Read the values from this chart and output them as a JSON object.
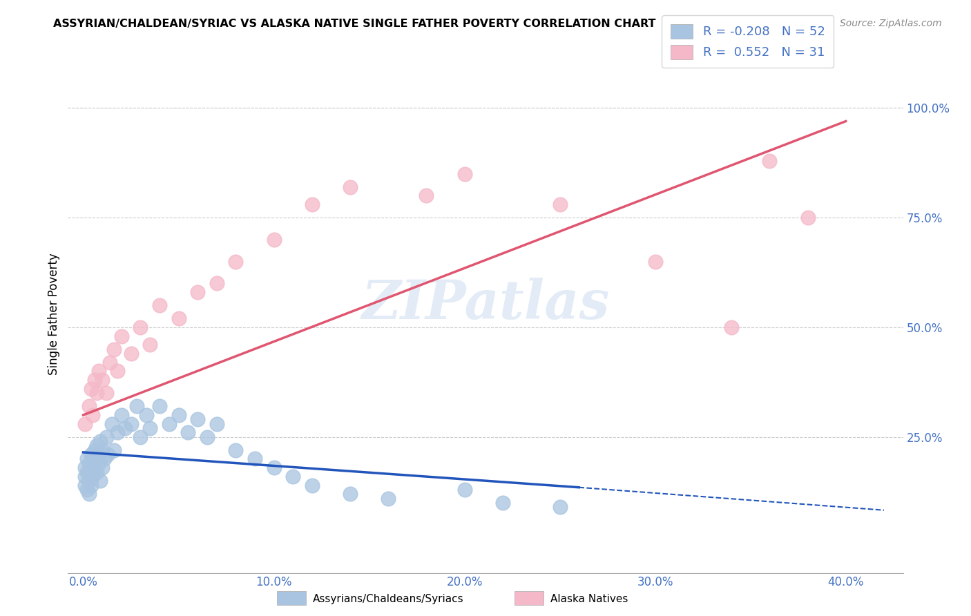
{
  "title": "ASSYRIAN/CHALDEAN/SYRIAC VS ALASKA NATIVE SINGLE FATHER POVERTY CORRELATION CHART",
  "source": "Source: ZipAtlas.com",
  "ylabel": "Single Father Poverty",
  "x_tick_labels": [
    "0.0%",
    "10.0%",
    "20.0%",
    "30.0%",
    "40.0%"
  ],
  "x_tick_vals": [
    0.0,
    0.1,
    0.2,
    0.3,
    0.4
  ],
  "y_tick_labels": [
    "25.0%",
    "50.0%",
    "75.0%",
    "100.0%"
  ],
  "y_tick_vals": [
    0.25,
    0.5,
    0.75,
    1.0
  ],
  "xlim": [
    -0.008,
    0.43
  ],
  "ylim": [
    -0.06,
    1.12
  ],
  "legend_label_blue": "Assyrians/Chaldeans/Syriacs",
  "legend_label_pink": "Alaska Natives",
  "R_blue": -0.208,
  "N_blue": 52,
  "R_pink": 0.552,
  "N_pink": 31,
  "blue_color": "#a8c4e0",
  "pink_color": "#f4b8c8",
  "blue_line_color": "#2255bb",
  "pink_line_color": "#e05570",
  "text_color": "#4472c4",
  "watermark": "ZIPatlas",
  "blue_scatter_x": [
    0.001,
    0.001,
    0.001,
    0.002,
    0.002,
    0.002,
    0.003,
    0.003,
    0.003,
    0.004,
    0.004,
    0.005,
    0.005,
    0.006,
    0.006,
    0.007,
    0.007,
    0.008,
    0.009,
    0.009,
    0.01,
    0.01,
    0.011,
    0.012,
    0.013,
    0.015,
    0.016,
    0.018,
    0.02,
    0.022,
    0.025,
    0.028,
    0.03,
    0.033,
    0.035,
    0.04,
    0.045,
    0.05,
    0.055,
    0.06,
    0.065,
    0.07,
    0.08,
    0.09,
    0.1,
    0.11,
    0.12,
    0.14,
    0.16,
    0.2,
    0.22,
    0.25
  ],
  "blue_scatter_y": [
    0.18,
    0.16,
    0.14,
    0.2,
    0.17,
    0.13,
    0.19,
    0.15,
    0.12,
    0.21,
    0.14,
    0.2,
    0.16,
    0.22,
    0.18,
    0.23,
    0.17,
    0.19,
    0.24,
    0.15,
    0.22,
    0.18,
    0.2,
    0.25,
    0.21,
    0.28,
    0.22,
    0.26,
    0.3,
    0.27,
    0.28,
    0.32,
    0.25,
    0.3,
    0.27,
    0.32,
    0.28,
    0.3,
    0.26,
    0.29,
    0.25,
    0.28,
    0.22,
    0.2,
    0.18,
    0.16,
    0.14,
    0.12,
    0.11,
    0.13,
    0.1,
    0.09
  ],
  "pink_scatter_x": [
    0.001,
    0.003,
    0.004,
    0.005,
    0.006,
    0.007,
    0.008,
    0.01,
    0.012,
    0.014,
    0.016,
    0.018,
    0.02,
    0.025,
    0.03,
    0.035,
    0.04,
    0.05,
    0.06,
    0.07,
    0.08,
    0.1,
    0.12,
    0.14,
    0.18,
    0.2,
    0.25,
    0.3,
    0.34,
    0.36,
    0.38
  ],
  "pink_scatter_y": [
    0.28,
    0.32,
    0.36,
    0.3,
    0.38,
    0.35,
    0.4,
    0.38,
    0.35,
    0.42,
    0.45,
    0.4,
    0.48,
    0.44,
    0.5,
    0.46,
    0.55,
    0.52,
    0.58,
    0.6,
    0.65,
    0.7,
    0.78,
    0.82,
    0.8,
    0.85,
    0.78,
    0.65,
    0.5,
    0.88,
    0.75
  ],
  "blue_line_x0": 0.0,
  "blue_line_x1": 0.26,
  "blue_line_y0": 0.215,
  "blue_line_y1": 0.135,
  "dash_line_x0": 0.26,
  "dash_line_x1": 0.42,
  "dash_line_y0": 0.135,
  "dash_line_y1": 0.083,
  "pink_line_x0": 0.0,
  "pink_line_x1": 0.4,
  "pink_line_y0": 0.3,
  "pink_line_y1": 0.97
}
